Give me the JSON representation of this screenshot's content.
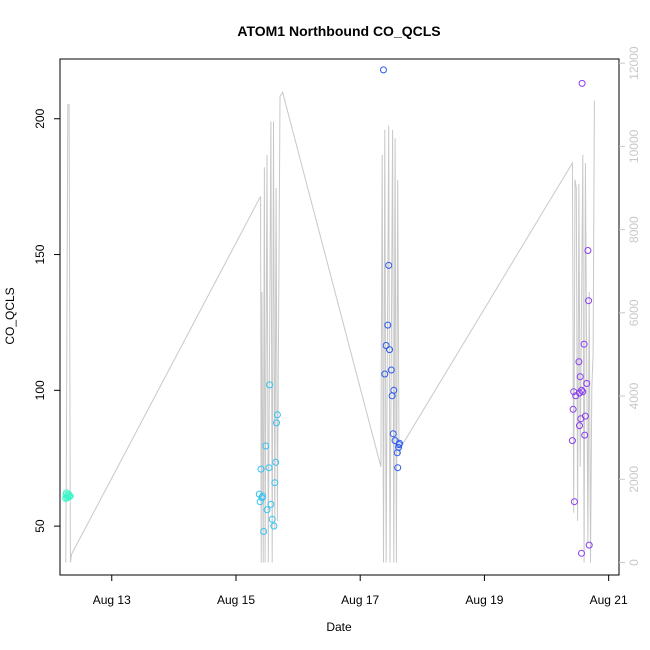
{
  "chart_data": {
    "type": "scatter",
    "title": "ATOM1 Northbound CO_QCLS",
    "xlabel": "Date",
    "ylabel": "CO_QCLS",
    "ylim": [
      32,
      222
    ],
    "yticks": [
      50,
      100,
      150,
      200
    ],
    "xlim": [
      "2023-08-12 04:00",
      "2023-08-21 04:00"
    ],
    "xticks": [
      {
        "label": "Aug 13",
        "at": "2023-08-13 00:00"
      },
      {
        "label": "Aug 15",
        "at": "2023-08-15 00:00"
      },
      {
        "label": "Aug 17",
        "at": "2023-08-17 00:00"
      },
      {
        "label": "Aug 19",
        "at": "2023-08-19 00:00"
      },
      {
        "label": "Aug 21",
        "at": "2023-08-21 00:00"
      }
    ],
    "secondary_axis": {
      "ylim": [
        -300,
        12100
      ],
      "yticks": [
        0,
        2000,
        4000,
        6000,
        8000,
        10000,
        12000
      ],
      "color": "#c8c8c8",
      "line": [
        [
          "2023-08-12 06:15",
          0
        ],
        [
          "2023-08-12 06:30",
          3200
        ],
        [
          "2023-08-12 07:00",
          11000
        ],
        [
          "2023-08-12 07:30",
          11000
        ],
        [
          "2023-08-12 08:00",
          0
        ],
        [
          "2023-08-12 08:30",
          200
        ],
        [
          "2023-08-15 09:30",
          8800
        ],
        [
          "2023-08-15 09:45",
          0
        ],
        [
          "2023-08-15 10:00",
          6500
        ],
        [
          "2023-08-15 10:30",
          0
        ],
        [
          "2023-08-15 11:00",
          9500
        ],
        [
          "2023-08-15 11:15",
          0
        ],
        [
          "2023-08-15 12:00",
          9800
        ],
        [
          "2023-08-15 12:30",
          0
        ],
        [
          "2023-08-15 13:30",
          10600
        ],
        [
          "2023-08-15 14:00",
          0
        ],
        [
          "2023-08-15 14:30",
          10600
        ],
        [
          "2023-08-15 15:00",
          800
        ],
        [
          "2023-08-15 15:30",
          9000
        ],
        [
          "2023-08-15 16:00",
          1000
        ],
        [
          "2023-08-15 17:00",
          11200
        ],
        [
          "2023-08-15 18:00",
          11300
        ],
        [
          "2023-08-17 08:00",
          2300
        ],
        [
          "2023-08-17 08:30",
          9800
        ],
        [
          "2023-08-17 09:00",
          0
        ],
        [
          "2023-08-17 09:30",
          10400
        ],
        [
          "2023-08-17 10:00",
          0
        ],
        [
          "2023-08-17 11:00",
          10500
        ],
        [
          "2023-08-17 11:30",
          0
        ],
        [
          "2023-08-17 12:30",
          10400
        ],
        [
          "2023-08-17 13:00",
          0
        ],
        [
          "2023-08-17 13:30",
          10200
        ],
        [
          "2023-08-17 14:00",
          0
        ],
        [
          "2023-08-17 14:30",
          9200
        ],
        [
          "2023-08-17 15:00",
          2600
        ],
        [
          "2023-08-17 16:00",
          2800
        ],
        [
          "2023-08-20 10:00",
          9600
        ],
        [
          "2023-08-20 10:30",
          1200
        ],
        [
          "2023-08-20 11:00",
          9200
        ],
        [
          "2023-08-20 11:30",
          9000
        ],
        [
          "2023-08-20 12:00",
          1000
        ],
        [
          "2023-08-20 12:30",
          9100
        ],
        [
          "2023-08-20 13:00",
          2300
        ],
        [
          "2023-08-20 14:00",
          9800
        ],
        [
          "2023-08-20 14:30",
          0
        ],
        [
          "2023-08-20 15:00",
          9600
        ],
        [
          "2023-08-20 16:00",
          500
        ],
        [
          "2023-08-20 16:30",
          6500
        ],
        [
          "2023-08-20 17:00",
          0
        ],
        [
          "2023-08-20 17:30",
          4200
        ],
        [
          "2023-08-20 18:00",
          5000
        ],
        [
          "2023-08-20 18:30",
          11100
        ]
      ]
    },
    "series": [
      {
        "color": "#3cf5c8",
        "points": [
          [
            "2023-08-12 06:10",
            60.2
          ],
          [
            "2023-08-12 06:20",
            61.5
          ],
          [
            "2023-08-12 06:30",
            62.3
          ],
          [
            "2023-08-12 06:40",
            60.4
          ],
          [
            "2023-08-12 06:55",
            61.2
          ],
          [
            "2023-08-12 07:10",
            60.6
          ],
          [
            "2023-08-12 07:25",
            61.7
          ],
          [
            "2023-08-12 07:40",
            60.9
          ],
          [
            "2023-08-12 07:55",
            61.0
          ]
        ]
      },
      {
        "color": "#35c3f3",
        "points": [
          [
            "2023-08-15 09:00",
            61.8
          ],
          [
            "2023-08-15 09:20",
            59.0
          ],
          [
            "2023-08-15 09:40",
            71.0
          ],
          [
            "2023-08-15 10:00",
            60.5
          ],
          [
            "2023-08-15 10:20",
            61.0
          ],
          [
            "2023-08-15 10:40",
            48.0
          ],
          [
            "2023-08-15 11:30",
            79.5
          ],
          [
            "2023-08-15 12:00",
            56.0
          ],
          [
            "2023-08-15 12:45",
            71.5
          ],
          [
            "2023-08-15 13:00",
            102.0
          ],
          [
            "2023-08-15 13:30",
            58.0
          ],
          [
            "2023-08-15 14:00",
            52.5
          ],
          [
            "2023-08-15 14:40",
            50.0
          ],
          [
            "2023-08-15 15:00",
            66.0
          ],
          [
            "2023-08-15 15:20",
            73.5
          ],
          [
            "2023-08-15 15:40",
            88.0
          ],
          [
            "2023-08-15 16:00",
            91.0
          ]
        ]
      },
      {
        "color": "#2b5cf0",
        "points": [
          [
            "2023-08-17 09:00",
            218.0
          ],
          [
            "2023-08-17 09:30",
            106.0
          ],
          [
            "2023-08-17 10:00",
            116.5
          ],
          [
            "2023-08-17 10:40",
            124.0
          ],
          [
            "2023-08-17 11:00",
            146.0
          ],
          [
            "2023-08-17 11:20",
            115.0
          ],
          [
            "2023-08-17 12:00",
            107.5
          ],
          [
            "2023-08-17 12:20",
            98.0
          ],
          [
            "2023-08-17 12:45",
            84.0
          ],
          [
            "2023-08-17 13:00",
            100.0
          ],
          [
            "2023-08-17 13:30",
            81.5
          ],
          [
            "2023-08-17 14:20",
            77.0
          ],
          [
            "2023-08-17 14:30",
            71.5
          ],
          [
            "2023-08-17 14:50",
            79.0
          ],
          [
            "2023-08-17 15:00",
            80.0
          ],
          [
            "2023-08-17 15:10",
            80.5
          ]
        ]
      },
      {
        "color": "#8a3cf0",
        "points": [
          [
            "2023-08-20 10:00",
            81.5
          ],
          [
            "2023-08-20 10:15",
            93.0
          ],
          [
            "2023-08-20 10:30",
            99.5
          ],
          [
            "2023-08-20 10:45",
            59.0
          ],
          [
            "2023-08-20 11:15",
            98.0
          ],
          [
            "2023-08-20 12:30",
            110.5
          ],
          [
            "2023-08-20 12:45",
            99.0
          ],
          [
            "2023-08-20 13:00",
            105.0
          ],
          [
            "2023-08-20 13:15",
            89.5
          ],
          [
            "2023-08-20 13:30",
            100.0
          ],
          [
            "2023-08-20 13:30",
            40.0
          ],
          [
            "2023-08-20 13:45",
            213.0
          ],
          [
            "2023-08-20 14:00",
            99.5
          ],
          [
            "2023-08-20 14:30",
            117.0
          ],
          [
            "2023-08-20 14:45",
            83.5
          ],
          [
            "2023-08-20 15:00",
            90.5
          ],
          [
            "2023-08-20 15:30",
            102.5
          ],
          [
            "2023-08-20 16:00",
            151.5
          ],
          [
            "2023-08-20 16:15",
            133.0
          ],
          [
            "2023-08-20 16:30",
            43.0
          ],
          [
            "2023-08-20 12:45",
            87.0
          ]
        ]
      }
    ]
  }
}
